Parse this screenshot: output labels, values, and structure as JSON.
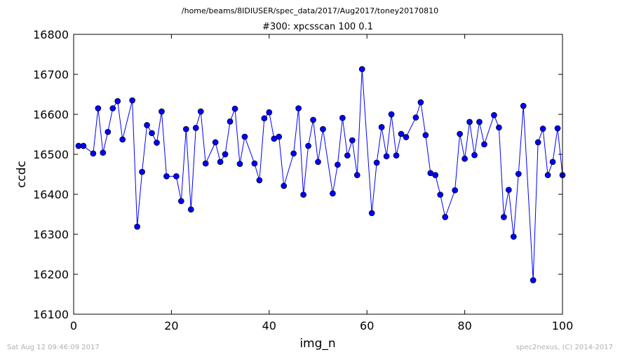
{
  "suptitle": "/home/beams/8IDIUSER/spec_data/2017/Aug2017/toney20170810",
  "footer_left": "Sat Aug 12 09:46:09 2017",
  "footer_right": "spec2nexus, (C) 2014-2017",
  "colors": {
    "series": "#0000ff",
    "marker_edge": "#000000",
    "axes": "#000000"
  },
  "chart_data": {
    "type": "scatter",
    "title": "#300: xpcsscan 100 0.1",
    "xlabel": "img_n",
    "ylabel": "ccdc",
    "xlim": [
      0,
      100
    ],
    "ylim": [
      16100,
      16800
    ],
    "x_ticks": [
      0,
      20,
      40,
      60,
      80,
      100
    ],
    "y_ticks": [
      16100,
      16200,
      16300,
      16400,
      16500,
      16600,
      16700,
      16800
    ],
    "x_tick_labels": [
      "0",
      "20",
      "40",
      "60",
      "80",
      "100"
    ],
    "y_tick_labels": [
      "16100",
      "16200",
      "16300",
      "16400",
      "16500",
      "16600",
      "16700",
      "16800"
    ],
    "grid": false,
    "series": [
      {
        "style": "line-with-markers",
        "x": [
          1,
          2,
          4,
          5,
          6,
          7,
          8,
          9,
          10,
          12,
          13,
          14,
          15,
          16,
          17,
          18,
          19,
          21,
          22,
          23,
          24,
          25,
          26,
          27,
          29,
          30,
          31,
          32,
          33,
          34,
          35,
          37,
          38,
          39,
          40,
          41,
          42,
          43,
          45,
          46,
          47,
          48,
          49,
          50,
          51,
          53,
          54,
          55,
          56,
          57,
          58,
          59,
          61,
          62,
          63,
          64,
          65,
          66,
          67,
          68,
          70,
          71,
          72,
          73,
          74,
          75,
          76,
          78,
          79,
          80,
          81,
          82,
          83,
          84,
          86,
          87,
          88,
          89,
          90,
          91,
          92,
          94,
          95,
          96,
          97,
          98,
          99,
          100
        ],
        "y": [
          16521,
          16521,
          16502,
          16615,
          16504,
          16556,
          16615,
          16633,
          16537,
          16635,
          16319,
          16456,
          16573,
          16553,
          16529,
          16607,
          16445,
          16445,
          16383,
          16563,
          16362,
          16566,
          16607,
          16477,
          16530,
          16481,
          16500,
          16582,
          16614,
          16476,
          16544,
          16477,
          16435,
          16590,
          16605,
          16539,
          16544,
          16421,
          16502,
          16615,
          16399,
          16521,
          16586,
          16481,
          16563,
          16402,
          16474,
          16591,
          16497,
          16535,
          16448,
          16713,
          16353,
          16479,
          16568,
          16495,
          16600,
          16497,
          16551,
          16543,
          16592,
          16630,
          16548,
          16453,
          16448,
          16399,
          16343,
          16410,
          16551,
          16489,
          16581,
          16498,
          16581,
          16525,
          16598,
          16567,
          16343,
          16411,
          16294,
          16451,
          16621,
          16185,
          16530,
          16564,
          16448,
          16481,
          16565,
          16448
        ]
      }
    ]
  }
}
